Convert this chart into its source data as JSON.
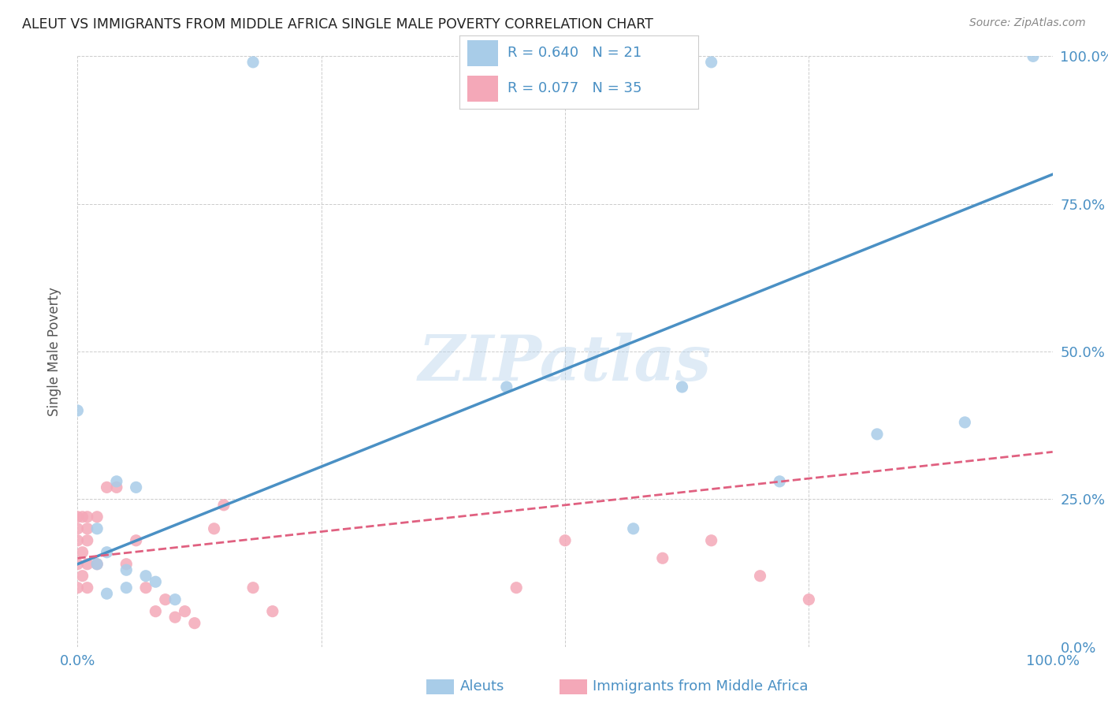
{
  "title": "ALEUT VS IMMIGRANTS FROM MIDDLE AFRICA SINGLE MALE POVERTY CORRELATION CHART",
  "source": "Source: ZipAtlas.com",
  "ylabel": "Single Male Poverty",
  "xlim": [
    0,
    1
  ],
  "ylim": [
    0,
    1
  ],
  "aleut_color": "#A8CCE8",
  "aleut_color_line": "#4A90C4",
  "immigrant_color": "#F4A8B8",
  "immigrant_color_line": "#E06080",
  "aleut_R": 0.64,
  "aleut_N": 21,
  "immigrant_R": 0.077,
  "immigrant_N": 35,
  "aleut_x": [
    0.0,
    0.02,
    0.02,
    0.03,
    0.03,
    0.04,
    0.05,
    0.05,
    0.06,
    0.07,
    0.08,
    0.1,
    0.44,
    0.57,
    0.62,
    0.65,
    0.72,
    0.82,
    0.91,
    0.98,
    0.18
  ],
  "aleut_y": [
    0.4,
    0.2,
    0.14,
    0.16,
    0.09,
    0.28,
    0.13,
    0.1,
    0.27,
    0.12,
    0.11,
    0.08,
    0.44,
    0.2,
    0.44,
    0.99,
    0.28,
    0.36,
    0.38,
    1.0,
    0.99
  ],
  "immigrant_x": [
    0.0,
    0.0,
    0.0,
    0.0,
    0.0,
    0.005,
    0.005,
    0.005,
    0.01,
    0.01,
    0.01,
    0.01,
    0.01,
    0.02,
    0.02,
    0.03,
    0.04,
    0.05,
    0.06,
    0.07,
    0.08,
    0.09,
    0.1,
    0.11,
    0.12,
    0.14,
    0.15,
    0.18,
    0.2,
    0.45,
    0.5,
    0.6,
    0.65,
    0.7,
    0.75
  ],
  "immigrant_y": [
    0.22,
    0.2,
    0.18,
    0.14,
    0.1,
    0.22,
    0.16,
    0.12,
    0.22,
    0.2,
    0.18,
    0.14,
    0.1,
    0.22,
    0.14,
    0.27,
    0.27,
    0.14,
    0.18,
    0.1,
    0.06,
    0.08,
    0.05,
    0.06,
    0.04,
    0.2,
    0.24,
    0.1,
    0.06,
    0.1,
    0.18,
    0.15,
    0.18,
    0.12,
    0.08
  ],
  "watermark": "ZIPatlas",
  "background_color": "#ffffff",
  "grid_color": "#cccccc",
  "title_color": "#222222",
  "label_color": "#4A90C4",
  "aleut_line_start_x": 0.0,
  "aleut_line_start_y": 0.14,
  "aleut_line_end_x": 1.0,
  "aleut_line_end_y": 0.8,
  "immigrant_line_start_x": 0.0,
  "immigrant_line_start_y": 0.15,
  "immigrant_line_end_x": 1.0,
  "immigrant_line_end_y": 0.33
}
